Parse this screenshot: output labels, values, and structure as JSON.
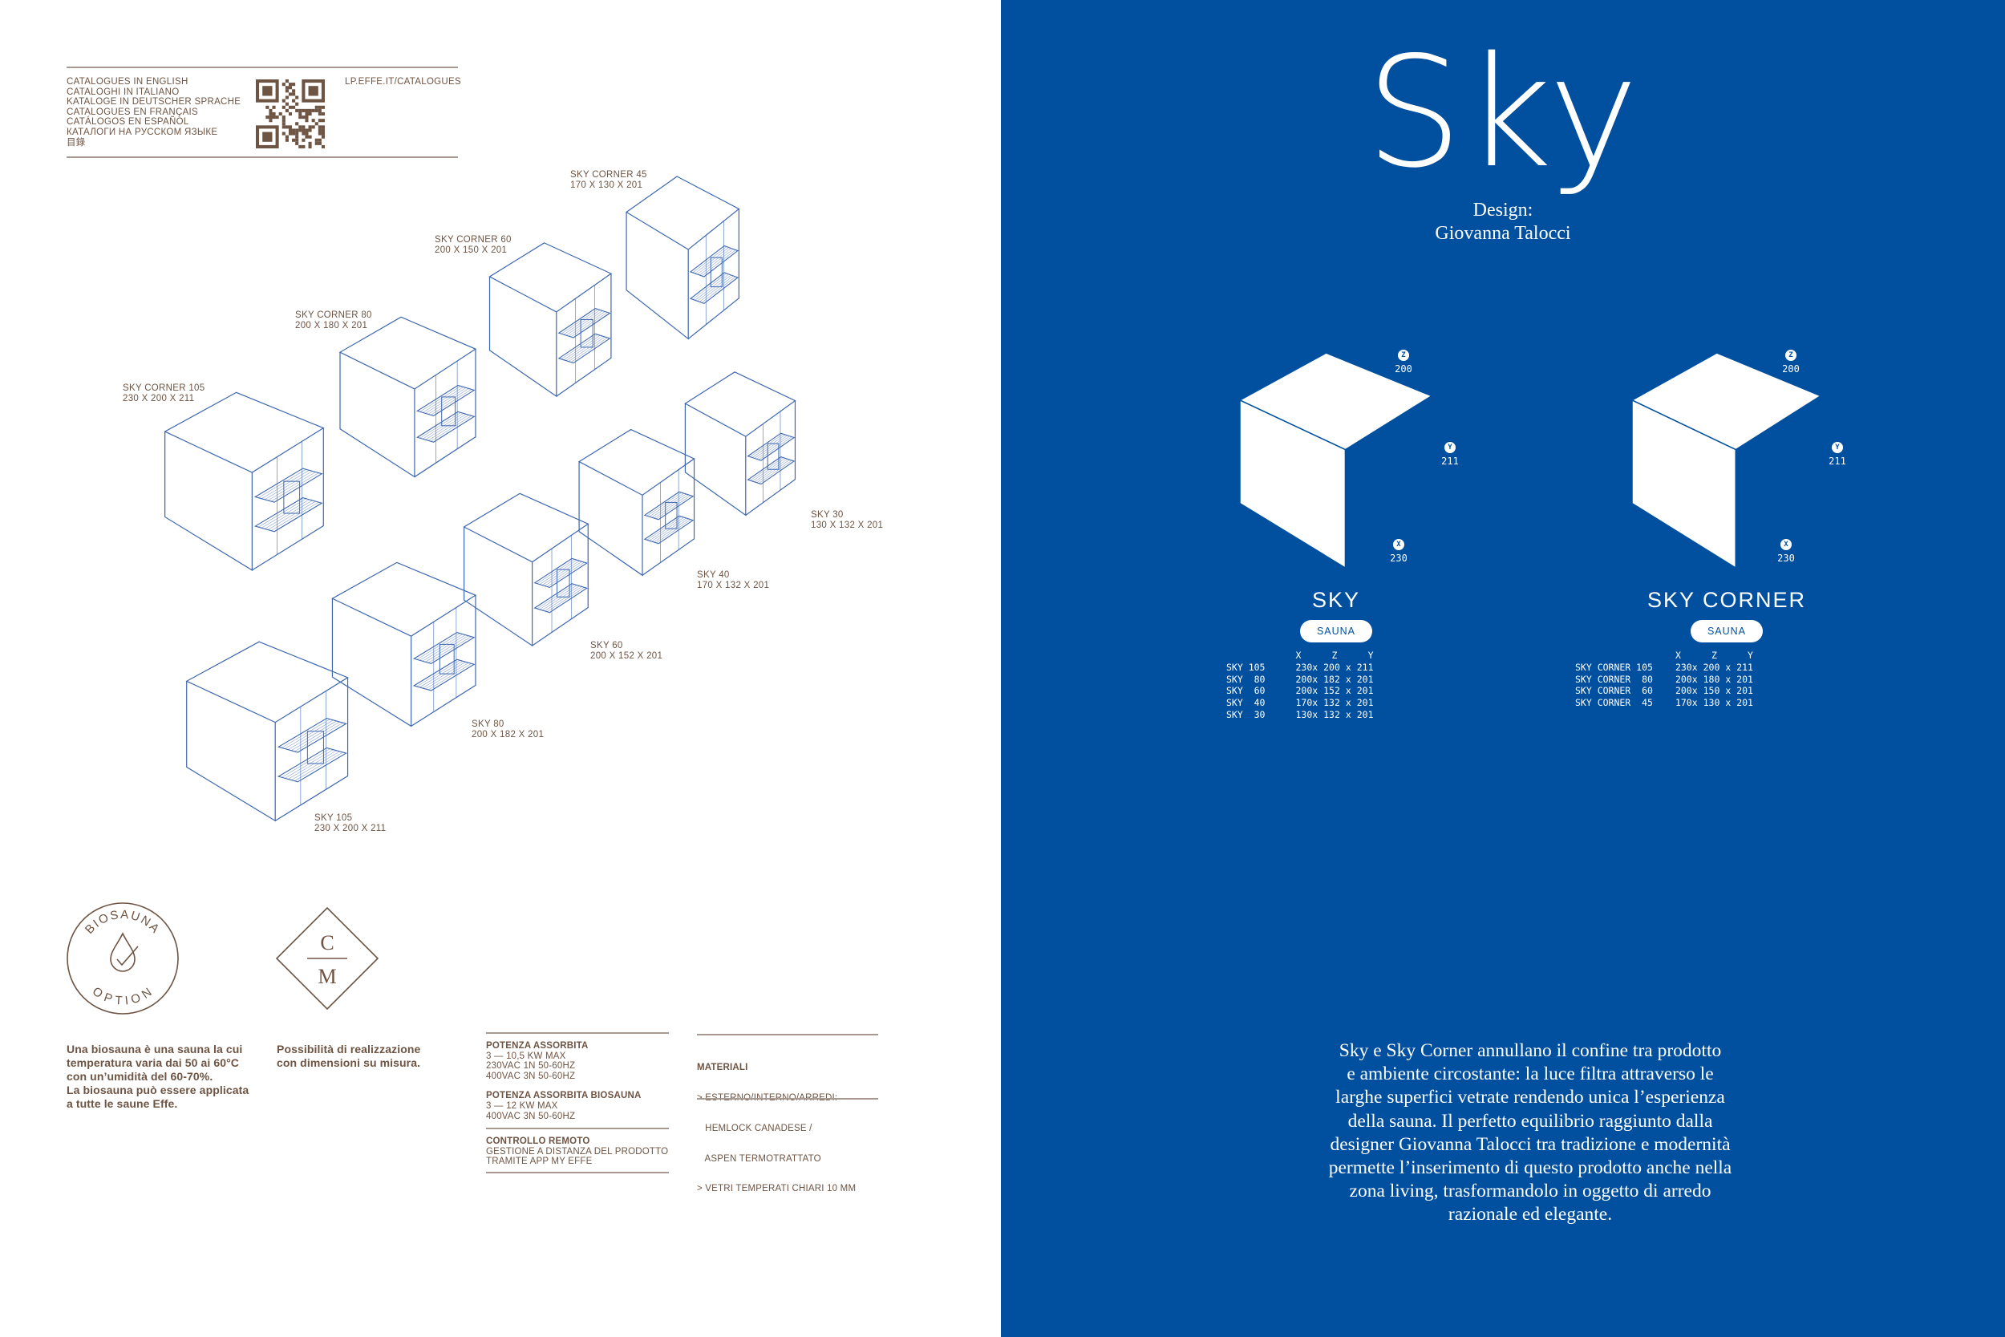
{
  "catalogues": {
    "languages": [
      "CATALOGUES IN ENGLISH",
      "CATALOGHI IN ITALIANO",
      "KATALOGE IN DEUTSCHER SPRACHE",
      "CATALOGUES EN FRANÇAIS",
      "CATÁLOGOS EN ESPAÑOL",
      "КАТАЛОГИ НА РУССКОМ ЯЗЫКЕ",
      "目錄"
    ],
    "url": "LP.EFFE.IT/CATALOGUES",
    "qr_icon": "qr-code"
  },
  "models": [
    {
      "name": "SKY CORNER 45",
      "dims": "170 X 130 X 201"
    },
    {
      "name": "SKY CORNER 60",
      "dims": "200 X 150 X 201"
    },
    {
      "name": "SKY CORNER 80",
      "dims": "200 X 180 X 201"
    },
    {
      "name": "SKY CORNER 105",
      "dims": "230 X 200 X 211"
    },
    {
      "name": "SKY 30",
      "dims": "130 X 132 X 201"
    },
    {
      "name": "SKY 40",
      "dims": "170 X 132 X 201"
    },
    {
      "name": "SKY 60",
      "dims": "200 X 152 X 201"
    },
    {
      "name": "SKY 80",
      "dims": "200 X 182 X 201"
    },
    {
      "name": "SKY 105",
      "dims": "230 X 200 X 211"
    }
  ],
  "badges": {
    "biosauna_top": "BIOSAUNA",
    "biosauna_bottom": "OPTION",
    "cm_top": "C",
    "cm_bottom": "M"
  },
  "notes": {
    "biosauna": [
      "Una biosauna è una sauna la cui",
      "temperatura varia dai 50 ai 60°C",
      "con un’umidità del 60-70%.",
      "La biosauna può essere applicata",
      "a tutte le saune Effe."
    ],
    "custom": [
      "Possibilità di realizzazione",
      "con dimensioni su misura."
    ]
  },
  "specs": {
    "power_title": "POTENZA ASSORBITA",
    "power_lines": [
      "3 — 10,5 KW MAX",
      "230VAC 1N 50-60HZ",
      "400VAC 3N 50-60HZ"
    ],
    "bio_title": "POTENZA ASSORBITA BIOSAUNA",
    "bio_lines": [
      "3 — 12 KW MAX",
      "400VAC 3N 50-60HZ"
    ],
    "remote_title": "CONTROLLO REMOTO",
    "remote_lines": [
      "GESTIONE A DISTANZA DEL PRODOTTO",
      "TRAMITE APP MY EFFE"
    ],
    "materials_title": "MATERIALI",
    "materials_lines": [
      "> ESTERNO/INTERNO/ARREDI:",
      "   HEMLOCK CANADESE /",
      "   ASPEN TERMOTRATTATO",
      "> VETRI TEMPERATI CHIARI 10 MM"
    ]
  },
  "right": {
    "title": "Sky",
    "design_label": "Design:",
    "designer": "Giovanna Talocci",
    "accent": "#00509f",
    "products": [
      {
        "name": "SKY",
        "tag": "SAUNA",
        "axes": {
          "z": "200",
          "y": "211",
          "x": "230"
        },
        "header": [
          "X",
          "Z",
          "Y"
        ],
        "rows": [
          [
            "SKY 105",
            "230",
            "200",
            "211"
          ],
          [
            "SKY  80",
            "200",
            "182",
            "201"
          ],
          [
            "SKY  60",
            "200",
            "152",
            "201"
          ],
          [
            "SKY  40",
            "170",
            "132",
            "201"
          ],
          [
            "SKY  30",
            "130",
            "132",
            "201"
          ]
        ]
      },
      {
        "name": "SKY CORNER",
        "tag": "SAUNA",
        "axes": {
          "z": "200",
          "y": "211",
          "x": "230"
        },
        "header": [
          "X",
          "Z",
          "Y"
        ],
        "rows": [
          [
            "SKY CORNER 105",
            "230",
            "200",
            "211"
          ],
          [
            "SKY CORNER  80",
            "200",
            "180",
            "201"
          ],
          [
            "SKY CORNER  60",
            "200",
            "150",
            "201"
          ],
          [
            "SKY CORNER  45",
            "170",
            "130",
            "201"
          ]
        ]
      }
    ],
    "axis_letters": {
      "z": "Z",
      "y": "Y",
      "x": "X"
    },
    "times": "x",
    "paragraph": [
      "Sky e Sky Corner annullano il confine tra prodotto",
      "e ambiente circostante: la luce filtra attraverso le",
      "larghe superfici vetrate rendendo unica l’esperienza",
      "della sauna. Il perfetto equilibrio raggiunto dalla",
      "designer Giovanna Talocci tra tradizione e modernità",
      "permette l’inserimento di questo prodotto anche nella",
      "zona living, trasformandolo in oggetto di arredo",
      "razionale ed elegante."
    ]
  }
}
